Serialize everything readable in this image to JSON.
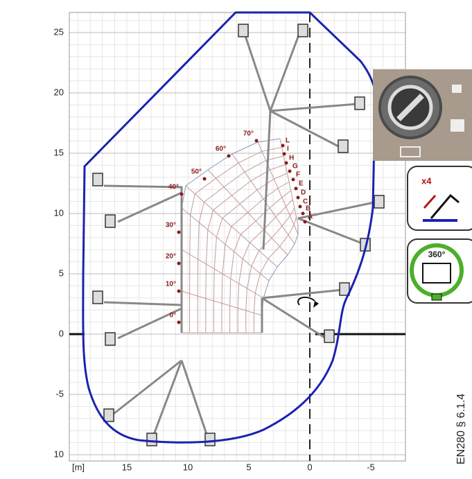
{
  "x_axis": {
    "unit_label": "[m]",
    "ticks": [
      15,
      10,
      5,
      0,
      -5
    ]
  },
  "y_axis": {
    "ticks": [
      25,
      20,
      15,
      10,
      5,
      0,
      -5,
      {
        "value": -10,
        "label": "10"
      }
    ]
  },
  "angle_labels": [
    "0°",
    "10°",
    "20°",
    "30°",
    "40°",
    "50°",
    "60°",
    "70°"
  ],
  "outreach_labels": [
    "L",
    "I",
    "H",
    "G",
    "F",
    "E",
    "D",
    "C",
    "B",
    "A"
  ],
  "panels": {
    "stabilizer_count": "x4",
    "rotation": "360°"
  },
  "standard": "EN280 § 6.1.4"
}
